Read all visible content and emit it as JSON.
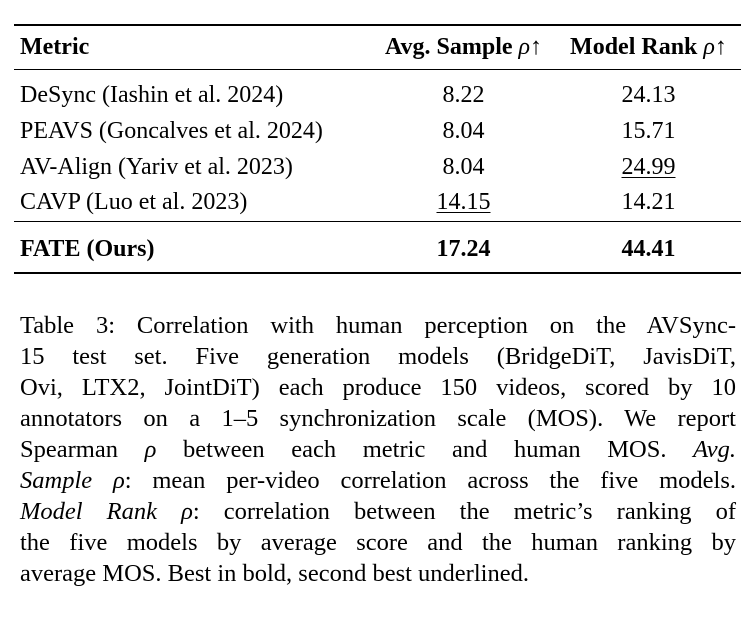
{
  "table": {
    "headers": {
      "metric": "Metric",
      "avg_sample_prefix": "Avg. Sample ",
      "model_rank_prefix": "Model Rank ",
      "rho_up": "ρ↑"
    },
    "rows": [
      {
        "metric": "DeSync (Iashin et al. 2024)",
        "avg_sample": "8.22",
        "model_rank": "24.13"
      },
      {
        "metric": "PEAVS (Goncalves et al. 2024)",
        "avg_sample": "8.04",
        "model_rank": "15.71"
      },
      {
        "metric": "AV-Align (Yariv et al. 2023)",
        "avg_sample": "8.04",
        "model_rank": "24.99"
      },
      {
        "metric": "CAVP (Luo et al. 2023)",
        "avg_sample": "14.15",
        "model_rank": "14.21"
      }
    ],
    "ours": {
      "metric": "FATE (Ours)",
      "avg_sample": "17.24",
      "model_rank": "44.41"
    }
  },
  "caption": {
    "line1": "Table 3: Correlation with human perception on the AVSync-",
    "line2": "15 test set. Five generation models (BridgeDiT, JavisDiT,",
    "line3": "Ovi, LTX2, JointDiT) each produce 150 videos, scored by 10",
    "line4": "annotators on a 1–5 synchronization scale (MOS). We report",
    "line5_a": "Spearman ",
    "line5_rho": "ρ",
    "line5_b": " between each metric and human MOS. ",
    "line5_em": "Avg.",
    "line6_em": "Sample ρ",
    "line6_b": ": mean per-video correlation across the five models.",
    "line7_em": "Model Rank ρ",
    "line7_b": ": correlation between the metric’s ranking of",
    "line8": "the five models by average score and the human ranking by",
    "line9": "average MOS. Best in bold, second best underlined."
  }
}
